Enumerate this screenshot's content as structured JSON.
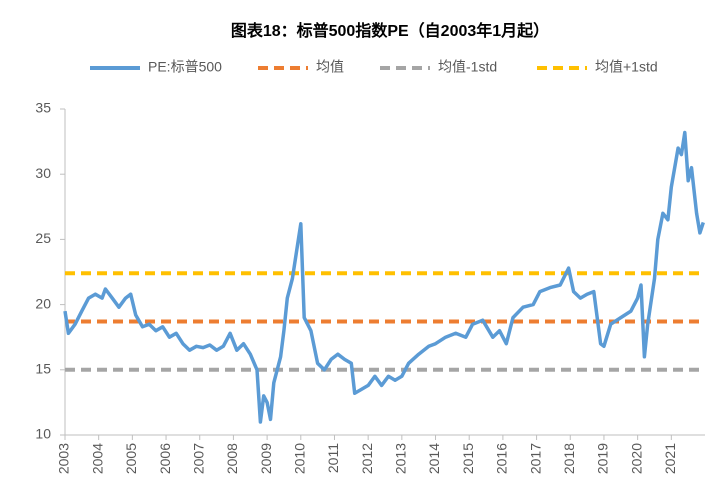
{
  "chart_data": {
    "type": "line",
    "title": "图表18：标普500指数PE（自2003年1月起）",
    "series": [
      {
        "name": "PE:标普500",
        "color": "#5b9bd5",
        "x": [
          2003.0,
          2003.1,
          2003.3,
          2003.5,
          2003.7,
          2003.9,
          2004.1,
          2004.2,
          2004.4,
          2004.6,
          2004.8,
          2004.95,
          2005.1,
          2005.3,
          2005.5,
          2005.7,
          2005.9,
          2006.1,
          2006.3,
          2006.5,
          2006.7,
          2006.9,
          2007.1,
          2007.3,
          2007.5,
          2007.7,
          2007.9,
          2008.1,
          2008.3,
          2008.5,
          2008.7,
          2008.8,
          2008.9,
          2009.0,
          2009.1,
          2009.2,
          2009.4,
          2009.5,
          2009.6,
          2009.75,
          2009.9,
          2010.0,
          2010.1,
          2010.3,
          2010.5,
          2010.7,
          2010.9,
          2011.1,
          2011.3,
          2011.5,
          2011.6,
          2011.8,
          2012.0,
          2012.2,
          2012.4,
          2012.6,
          2012.8,
          2013.0,
          2013.2,
          2013.5,
          2013.8,
          2014.0,
          2014.3,
          2014.6,
          2014.9,
          2015.1,
          2015.4,
          2015.7,
          2015.9,
          2016.1,
          2016.3,
          2016.6,
          2016.9,
          2017.1,
          2017.4,
          2017.7,
          2017.95,
          2018.1,
          2018.3,
          2018.5,
          2018.7,
          2018.9,
          2019.0,
          2019.2,
          2019.5,
          2019.8,
          2020.0,
          2020.1,
          2020.2,
          2020.3,
          2020.5,
          2020.6,
          2020.75,
          2020.9,
          2021.0,
          2021.2,
          2021.3,
          2021.4,
          2021.5,
          2021.6,
          2021.75,
          2021.85,
          2021.95
        ],
        "values": [
          19.5,
          17.8,
          18.5,
          19.5,
          20.5,
          20.8,
          20.5,
          21.2,
          20.5,
          19.8,
          20.5,
          20.8,
          19.2,
          18.3,
          18.5,
          18.0,
          18.3,
          17.5,
          17.8,
          17.0,
          16.5,
          16.8,
          16.7,
          16.9,
          16.5,
          16.8,
          17.8,
          16.5,
          17.0,
          16.2,
          15.0,
          11.0,
          13.0,
          12.5,
          11.2,
          14.0,
          16.0,
          18.0,
          20.5,
          22.0,
          24.5,
          26.2,
          19.0,
          18.0,
          15.5,
          15.0,
          15.8,
          16.2,
          15.8,
          15.5,
          13.2,
          13.5,
          13.8,
          14.5,
          13.8,
          14.5,
          14.2,
          14.5,
          15.5,
          16.2,
          16.8,
          17.0,
          17.5,
          17.8,
          17.5,
          18.5,
          18.8,
          17.5,
          18.0,
          17.0,
          19.0,
          19.8,
          20.0,
          21.0,
          21.3,
          21.5,
          22.8,
          21.0,
          20.5,
          20.8,
          21.0,
          17.0,
          16.8,
          18.5,
          19.0,
          19.5,
          20.5,
          21.5,
          16.0,
          18.5,
          22.0,
          25.0,
          27.0,
          26.5,
          29.0,
          32.0,
          31.5,
          33.2,
          29.5,
          30.5,
          27.0,
          25.5,
          26.3
        ]
      }
    ],
    "hlines": [
      {
        "name": "均值",
        "color": "#ed7d31",
        "value": 18.7
      },
      {
        "name": "均值-1std",
        "color": "#a5a5a5",
        "value": 15.0
      },
      {
        "name": "均值+1std",
        "color": "#ffc000",
        "value": 22.4
      }
    ],
    "xlim": [
      2003,
      2022
    ],
    "xticks": [
      2003,
      2004,
      2005,
      2006,
      2007,
      2008,
      2009,
      2010,
      2011,
      2012,
      2013,
      2014,
      2015,
      2016,
      2017,
      2018,
      2019,
      2020,
      2021
    ],
    "ylim": [
      10,
      35
    ],
    "yticks": [
      10,
      15,
      20,
      25,
      30,
      35
    ]
  }
}
